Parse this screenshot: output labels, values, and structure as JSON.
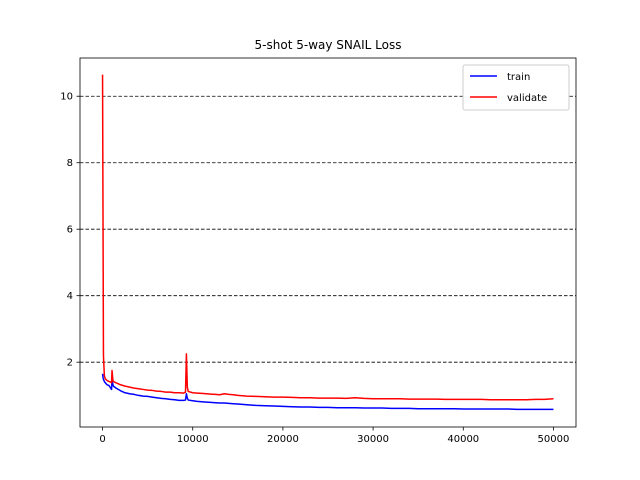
{
  "chart_data": {
    "type": "line",
    "title": "5-shot 5-way SNAIL Loss",
    "xlabel": "",
    "ylabel": "",
    "xlim": [
      -2500,
      52500
    ],
    "ylim": [
      0.05,
      11.15
    ],
    "xticks": [
      0,
      10000,
      20000,
      30000,
      40000,
      50000
    ],
    "yticks": [
      2,
      4,
      6,
      8,
      10
    ],
    "grid": "y-dashed",
    "legend_position": "top-right",
    "series": [
      {
        "name": "train",
        "color": "#0000ff",
        "x": [
          0,
          50,
          100,
          200,
          300,
          500,
          700,
          900,
          1000,
          1050,
          1100,
          1150,
          1200,
          1500,
          2000,
          2500,
          3000,
          3500,
          4000,
          4500,
          5000,
          5500,
          6000,
          6500,
          7000,
          7500,
          8000,
          8500,
          9000,
          9200,
          9300,
          9400,
          9500,
          10000,
          10500,
          11000,
          11500,
          12000,
          12500,
          13000,
          13500,
          14000,
          14500,
          15000,
          16000,
          17000,
          18000,
          19000,
          20000,
          21000,
          22000,
          23000,
          24000,
          25000,
          26000,
          27000,
          28000,
          29000,
          30000,
          31000,
          32000,
          33000,
          34000,
          35000,
          36000,
          37000,
          38000,
          39000,
          40000,
          41000,
          42000,
          43000,
          44000,
          45000,
          46000,
          47000,
          48000,
          49000,
          50000
        ],
        "y": [
          1.65,
          1.55,
          1.48,
          1.42,
          1.38,
          1.32,
          1.3,
          1.22,
          1.18,
          1.52,
          1.4,
          1.33,
          1.28,
          1.22,
          1.14,
          1.08,
          1.05,
          1.03,
          1.0,
          0.98,
          0.97,
          0.95,
          0.93,
          0.91,
          0.9,
          0.88,
          0.87,
          0.85,
          0.85,
          0.86,
          1.05,
          0.92,
          0.86,
          0.84,
          0.82,
          0.81,
          0.8,
          0.79,
          0.78,
          0.77,
          0.77,
          0.76,
          0.75,
          0.74,
          0.72,
          0.7,
          0.69,
          0.68,
          0.67,
          0.66,
          0.65,
          0.65,
          0.64,
          0.64,
          0.63,
          0.63,
          0.63,
          0.62,
          0.62,
          0.62,
          0.61,
          0.61,
          0.61,
          0.6,
          0.6,
          0.6,
          0.6,
          0.6,
          0.59,
          0.59,
          0.59,
          0.59,
          0.59,
          0.59,
          0.58,
          0.58,
          0.58,
          0.58,
          0.58
        ]
      },
      {
        "name": "validate",
        "color": "#ff0000",
        "x": [
          0,
          50,
          100,
          200,
          300,
          500,
          700,
          900,
          1000,
          1050,
          1100,
          1150,
          1200,
          1500,
          2000,
          2500,
          3000,
          3500,
          4000,
          4500,
          5000,
          5500,
          6000,
          6500,
          7000,
          7500,
          8000,
          8500,
          9000,
          9200,
          9300,
          9400,
          9500,
          10000,
          10500,
          11000,
          11500,
          12000,
          12500,
          13000,
          13500,
          14000,
          14500,
          15000,
          16000,
          17000,
          18000,
          19000,
          20000,
          21000,
          22000,
          23000,
          24000,
          25000,
          26000,
          27000,
          28000,
          29000,
          30000,
          31000,
          32000,
          33000,
          34000,
          35000,
          36000,
          37000,
          38000,
          39000,
          40000,
          41000,
          42000,
          43000,
          44000,
          45000,
          46000,
          47000,
          48000,
          49000,
          50000
        ],
        "y": [
          10.65,
          6.5,
          2.2,
          1.6,
          1.5,
          1.45,
          1.42,
          1.4,
          1.38,
          1.75,
          1.6,
          1.45,
          1.42,
          1.38,
          1.32,
          1.28,
          1.25,
          1.22,
          1.2,
          1.18,
          1.16,
          1.15,
          1.13,
          1.12,
          1.1,
          1.1,
          1.08,
          1.08,
          1.07,
          1.1,
          2.25,
          1.25,
          1.12,
          1.08,
          1.07,
          1.06,
          1.05,
          1.04,
          1.03,
          1.02,
          1.05,
          1.03,
          1.02,
          1.0,
          0.98,
          0.97,
          0.96,
          0.95,
          0.95,
          0.94,
          0.93,
          0.93,
          0.92,
          0.92,
          0.92,
          0.91,
          0.93,
          0.91,
          0.9,
          0.9,
          0.9,
          0.9,
          0.89,
          0.89,
          0.89,
          0.89,
          0.88,
          0.88,
          0.88,
          0.88,
          0.88,
          0.87,
          0.87,
          0.87,
          0.87,
          0.87,
          0.88,
          0.88,
          0.9
        ]
      }
    ]
  }
}
